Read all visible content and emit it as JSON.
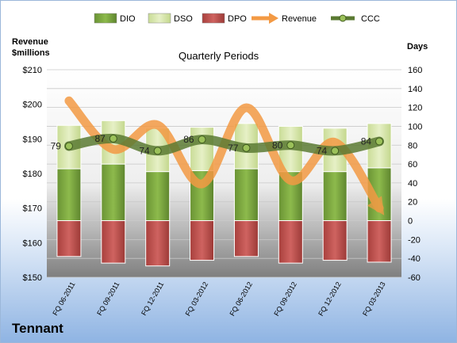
{
  "chart_data": {
    "type": "bar",
    "title": "Quarterly Periods",
    "left_axis_label": [
      "Revenue",
      "$millions"
    ],
    "right_axis_label": "Days",
    "categories": [
      "FQ 06-2011",
      "FQ 09-2011",
      "FQ 12-2011",
      "FQ 03-2012",
      "FQ 06-2012",
      "FQ 09-2012",
      "FQ 12-2012",
      "FQ 03-2013"
    ],
    "left_axis": {
      "min": 150,
      "max": 210,
      "ticks": [
        "$150",
        "$160",
        "$170",
        "$180",
        "$190",
        "$200",
        "$210"
      ]
    },
    "right_axis": {
      "min": -60,
      "max": 160,
      "step": 20
    },
    "series": [
      {
        "name": "DIO",
        "kind": "stacked-bar-right-axis",
        "values": [
          55,
          60,
          52,
          53,
          55,
          52,
          52,
          56
        ],
        "color": "#79a53c"
      },
      {
        "name": "DSO",
        "kind": "stacked-bar-right-axis",
        "values": [
          46,
          46,
          46,
          46,
          48,
          48,
          46,
          47
        ],
        "color": "#d8e8ad"
      },
      {
        "name": "DPO",
        "kind": "negative-bar-right-axis",
        "values": [
          -38,
          -45,
          -48,
          -42,
          -38,
          -45,
          -42,
          -44
        ],
        "color": "#c0504d"
      },
      {
        "name": "Revenue",
        "kind": "line-left-axis",
        "values": [
          201,
          187,
          194,
          177,
          199,
          178,
          189,
          170
        ],
        "color": "#f39a44"
      },
      {
        "name": "CCC",
        "kind": "line-right-axis",
        "values": [
          79,
          87,
          74,
          86,
          77,
          80,
          74,
          84
        ],
        "color": "#5a7a32"
      }
    ],
    "ccc_labels": [
      "79",
      "87",
      "74",
      "86",
      "77",
      "80",
      "74",
      "84"
    ],
    "legend_position": "top",
    "grid": true
  },
  "company": "Tennant"
}
